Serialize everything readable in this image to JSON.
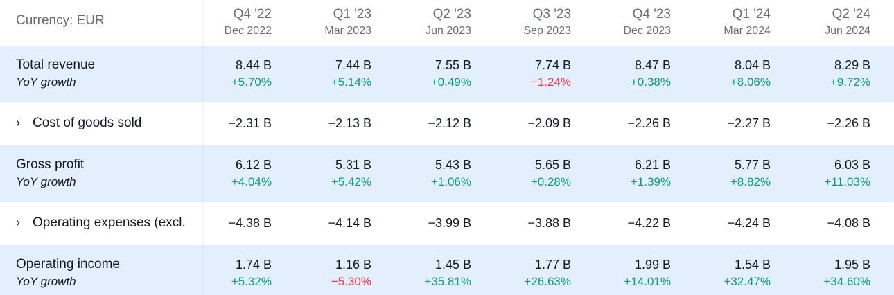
{
  "currency_label": "Currency: EUR",
  "columns": [
    {
      "q": "Q4 '22",
      "d": "Dec 2022"
    },
    {
      "q": "Q1 '23",
      "d": "Mar 2023"
    },
    {
      "q": "Q2 '23",
      "d": "Jun 2023"
    },
    {
      "q": "Q3 '23",
      "d": "Sep 2023"
    },
    {
      "q": "Q4 '23",
      "d": "Dec 2023"
    },
    {
      "q": "Q1 '24",
      "d": "Mar 2024"
    },
    {
      "q": "Q2 '24",
      "d": "Jun 2024"
    }
  ],
  "rows": [
    {
      "label": "Total revenue",
      "sub": "YoY growth",
      "values": [
        "8.44 B",
        "7.44 B",
        "7.55 B",
        "7.74 B",
        "8.47 B",
        "8.04 B",
        "8.29 B"
      ],
      "growth": [
        "+5.70%",
        "+5.14%",
        "+0.49%",
        "−1.24%",
        "+0.38%",
        "+8.06%",
        "+9.72%"
      ]
    },
    {
      "label": "Cost of goods sold",
      "chevron": "›",
      "values": [
        "−2.31 B",
        "−2.13 B",
        "−2.12 B",
        "−2.09 B",
        "−2.26 B",
        "−2.27 B",
        "−2.26 B"
      ]
    },
    {
      "label": "Gross profit",
      "sub": "YoY growth",
      "values": [
        "6.12 B",
        "5.31 B",
        "5.43 B",
        "5.65 B",
        "6.21 B",
        "5.77 B",
        "6.03 B"
      ],
      "growth": [
        "+4.04%",
        "+5.42%",
        "+1.06%",
        "+0.28%",
        "+1.39%",
        "+8.82%",
        "+11.03%"
      ]
    },
    {
      "label": "Operating expenses (excl.",
      "chevron": "›",
      "values": [
        "−4.38 B",
        "−4.14 B",
        "−3.99 B",
        "−3.88 B",
        "−4.22 B",
        "−4.24 B",
        "−4.08 B"
      ]
    },
    {
      "label": "Operating income",
      "sub": "YoY growth",
      "values": [
        "1.74 B",
        "1.16 B",
        "1.45 B",
        "1.77 B",
        "1.99 B",
        "1.54 B",
        "1.95 B"
      ],
      "growth": [
        "+5.32%",
        "−5.30%",
        "+35.81%",
        "+26.63%",
        "+14.01%",
        "+32.47%",
        "+34.60%"
      ]
    }
  ],
  "colors": {
    "positive": "#089981",
    "negative": "#f23645",
    "highlight_row": "#e3effd"
  }
}
